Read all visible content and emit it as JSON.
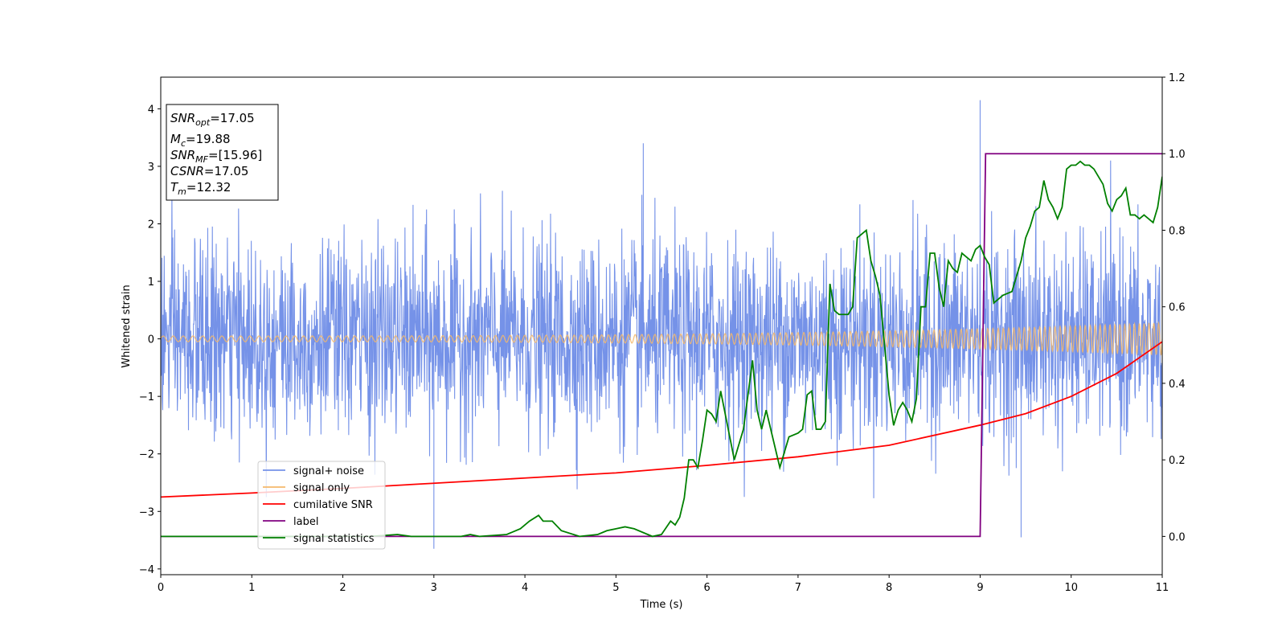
{
  "chart_data": {
    "type": "line",
    "xlabel": "Time (s)",
    "ylabel": "Whitened strain",
    "xlim": [
      0,
      11
    ],
    "ylim": [
      -4.1,
      4.55
    ],
    "y2lim": [
      -0.1,
      1.2
    ],
    "xticks": [
      "0",
      "1",
      "2",
      "3",
      "4",
      "5",
      "6",
      "7",
      "8",
      "9",
      "10",
      "11"
    ],
    "yticks": [
      "−4",
      "−3",
      "−2",
      "−1",
      "0",
      "1",
      "2",
      "3",
      "4"
    ],
    "y2ticks": [
      "0.0",
      "0.2",
      "0.4",
      "0.6",
      "0.8",
      "1.0",
      "1.2"
    ],
    "legend_position": "lower-left",
    "annotation": {
      "snr_opt": {
        "symbol": "SNR",
        "sub": "opt",
        "value": "=17.05"
      },
      "mc": {
        "symbol": "M",
        "sub": "c",
        "value": "=19.88"
      },
      "snr_mf": {
        "symbol": "SNR",
        "sub": "MF",
        "value": "=[15.96]"
      },
      "csnr": {
        "symbol": "CSNR",
        "value": "=17.05"
      },
      "tm": {
        "symbol": "T",
        "sub": "m",
        "value": "=12.32"
      }
    },
    "series": [
      {
        "name": "signal+ noise",
        "color": "#7592e8",
        "axis": "left",
        "description_points": [
          [
            0,
            0.0
          ],
          [
            9.0,
            4.15
          ],
          [
            5.3,
            3.4
          ],
          [
            3.0,
            -3.65
          ],
          [
            9.45,
            -3.45
          ]
        ],
        "envelope": {
          "typical_amplitude": 1.6,
          "max": 4.15,
          "min": -3.65
        }
      },
      {
        "name": "signal only",
        "color": "#f5b86b",
        "axis": "left",
        "chirp": {
          "start_amplitude": 0.05,
          "end_amplitude": 0.28,
          "start_cycles_per_s": 9,
          "end_cycles_per_s": 14
        }
      },
      {
        "name": "cumilative SNR",
        "color": "#ff0000",
        "axis": "left",
        "x": [
          0,
          1,
          2,
          3,
          4,
          5,
          6,
          7,
          8,
          9,
          9.5,
          10,
          10.5,
          11
        ],
        "y": [
          -2.75,
          -2.68,
          -2.6,
          -2.51,
          -2.42,
          -2.33,
          -2.2,
          -2.05,
          -1.85,
          -1.5,
          -1.3,
          -1.0,
          -0.6,
          -0.05
        ]
      },
      {
        "name": "label",
        "color": "#800080",
        "axis": "right",
        "x": [
          0,
          9.0,
          9.06,
          11
        ],
        "y": [
          0.0,
          0.0,
          1.0,
          1.0
        ]
      },
      {
        "name": "signal statistics",
        "color": "#008000",
        "axis": "right",
        "x": [
          0,
          0.3,
          1,
          1.5,
          2,
          2.3,
          2.6,
          2.75,
          3.0,
          3.3,
          3.4,
          3.5,
          3.8,
          3.95,
          4.05,
          4.15,
          4.2,
          4.3,
          4.4,
          4.6,
          4.8,
          4.9,
          5.0,
          5.1,
          5.2,
          5.4,
          5.5,
          5.6,
          5.65,
          5.7,
          5.75,
          5.8,
          5.85,
          5.9,
          5.95,
          6.0,
          6.05,
          6.1,
          6.15,
          6.2,
          6.3,
          6.4,
          6.5,
          6.55,
          6.6,
          6.65,
          6.75,
          6.8,
          6.9,
          7.0,
          7.05,
          7.1,
          7.15,
          7.2,
          7.25,
          7.3,
          7.35,
          7.4,
          7.45,
          7.55,
          7.6,
          7.65,
          7.7,
          7.75,
          7.8,
          7.85,
          7.9,
          7.95,
          8.0,
          8.05,
          8.1,
          8.15,
          8.2,
          8.25,
          8.3,
          8.35,
          8.4,
          8.45,
          8.5,
          8.55,
          8.6,
          8.65,
          8.7,
          8.75,
          8.8,
          8.85,
          8.9,
          8.95,
          9.0,
          9.05,
          9.1,
          9.15,
          9.2,
          9.25,
          9.35,
          9.45,
          9.5,
          9.55,
          9.6,
          9.65,
          9.7,
          9.75,
          9.8,
          9.85,
          9.9,
          9.95,
          10.0,
          10.05,
          10.1,
          10.15,
          10.2,
          10.25,
          10.3,
          10.35,
          10.4,
          10.45,
          10.5,
          10.55,
          10.6,
          10.65,
          10.7,
          10.75,
          10.8,
          10.85,
          10.9,
          10.95,
          11.0
        ],
        "y": [
          0.0,
          0.0,
          0.0,
          0.0,
          0.0,
          0.0,
          0.005,
          0.0,
          0.0,
          0.0,
          0.005,
          0.0,
          0.005,
          0.02,
          0.04,
          0.055,
          0.04,
          0.04,
          0.015,
          0.0,
          0.005,
          0.015,
          0.02,
          0.025,
          0.02,
          0.0,
          0.005,
          0.04,
          0.03,
          0.05,
          0.1,
          0.2,
          0.2,
          0.18,
          0.25,
          0.33,
          0.32,
          0.3,
          0.38,
          0.32,
          0.2,
          0.28,
          0.46,
          0.33,
          0.28,
          0.33,
          0.23,
          0.18,
          0.26,
          0.27,
          0.28,
          0.37,
          0.38,
          0.28,
          0.28,
          0.3,
          0.66,
          0.59,
          0.58,
          0.58,
          0.6,
          0.78,
          0.79,
          0.8,
          0.72,
          0.68,
          0.63,
          0.5,
          0.37,
          0.29,
          0.33,
          0.35,
          0.33,
          0.3,
          0.36,
          0.6,
          0.6,
          0.74,
          0.74,
          0.65,
          0.6,
          0.72,
          0.7,
          0.69,
          0.74,
          0.73,
          0.72,
          0.75,
          0.76,
          0.73,
          0.71,
          0.61,
          0.62,
          0.63,
          0.64,
          0.72,
          0.78,
          0.81,
          0.85,
          0.86,
          0.93,
          0.88,
          0.86,
          0.83,
          0.86,
          0.96,
          0.97,
          0.97,
          0.98,
          0.97,
          0.97,
          0.96,
          0.94,
          0.92,
          0.87,
          0.85,
          0.88,
          0.89,
          0.91,
          0.84,
          0.84,
          0.83,
          0.84,
          0.83,
          0.82,
          0.86,
          0.94
        ]
      }
    ]
  }
}
